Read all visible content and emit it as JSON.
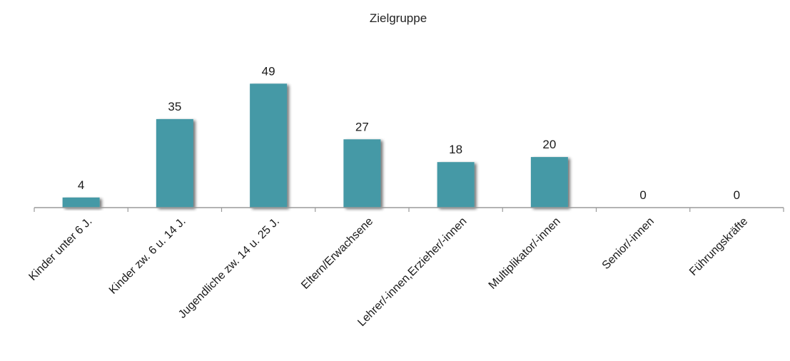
{
  "chart_data": {
    "type": "bar",
    "title": "Zielgruppe",
    "xlabel": "",
    "ylabel": "",
    "categories": [
      "Kinder unter 6 J.",
      "Kinder zw. 6 u. 14 J.",
      "Jugendliche zw. 14 u. 25 J.",
      "Eltern/Erwachsene",
      "Lehrer/-innen,Erzieher/-innen",
      "Multiplikator/-innen",
      "Senior/-innen",
      "Führungskräfte"
    ],
    "values": [
      4,
      35,
      49,
      27,
      18,
      20,
      0,
      0
    ],
    "ylim": [
      0,
      55
    ],
    "grid": false,
    "legend": "none",
    "data_labels": true,
    "colors": {
      "bar": "#4599a6",
      "bar_shadow": "#9a9a9a",
      "axis": "#9a9a9a",
      "text": "#1a1a1a"
    }
  }
}
